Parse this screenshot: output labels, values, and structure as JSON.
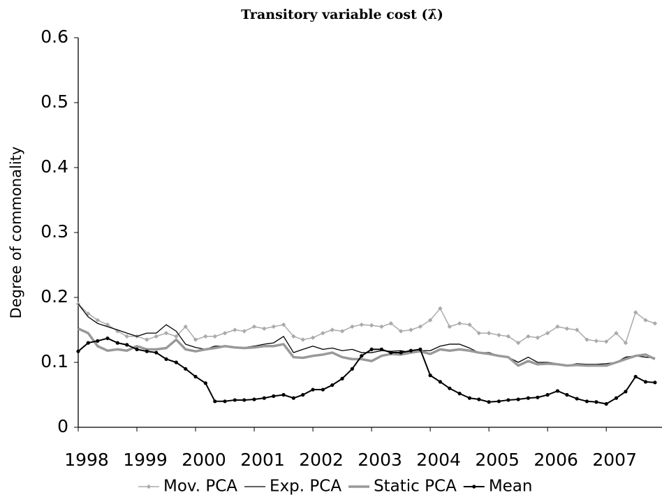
{
  "chart_data": {
    "type": "line",
    "title": "Transitory variable cost (λ̄)",
    "y_label": "Degree of commonality",
    "x": [
      1998,
      1998.17,
      1998.33,
      1998.5,
      1998.67,
      1998.83,
      1999,
      1999.17,
      1999.33,
      1999.5,
      1999.67,
      1999.83,
      2000,
      2000.17,
      2000.33,
      2000.5,
      2000.67,
      2000.83,
      2001,
      2001.17,
      2001.33,
      2001.5,
      2001.67,
      2001.83,
      2002,
      2002.17,
      2002.33,
      2002.5,
      2002.67,
      2002.83,
      2003,
      2003.17,
      2003.33,
      2003.5,
      2003.67,
      2003.83,
      2004,
      2004.17,
      2004.33,
      2004.5,
      2004.67,
      2004.83,
      2005,
      2005.17,
      2005.33,
      2005.5,
      2005.67,
      2005.83,
      2006,
      2006.17,
      2006.33,
      2006.5,
      2006.67,
      2006.83,
      2007,
      2007.17,
      2007.33,
      2007.5,
      2007.67,
      2007.83
    ],
    "series": [
      {
        "name": "Mov. PCA",
        "color": "#aaaaaa",
        "marker": "diamond",
        "width": 1.5,
        "values": [
          0.19,
          0.175,
          0.165,
          0.158,
          0.148,
          0.14,
          0.14,
          0.135,
          0.14,
          0.145,
          0.14,
          0.155,
          0.135,
          0.14,
          0.14,
          0.145,
          0.15,
          0.148,
          0.155,
          0.152,
          0.155,
          0.158,
          0.14,
          0.135,
          0.138,
          0.145,
          0.15,
          0.148,
          0.155,
          0.158,
          0.157,
          0.155,
          0.16,
          0.148,
          0.15,
          0.155,
          0.165,
          0.183,
          0.155,
          0.16,
          0.158,
          0.145,
          0.145,
          0.142,
          0.14,
          0.13,
          0.14,
          0.138,
          0.145,
          0.155,
          0.152,
          0.15,
          0.135,
          0.133,
          0.132,
          0.145,
          0.13,
          0.177,
          0.165,
          0.16
        ]
      },
      {
        "name": "Exp. PCA",
        "color": "#000000",
        "marker": "none",
        "width": 1.3,
        "values": [
          0.19,
          0.17,
          0.16,
          0.155,
          0.15,
          0.145,
          0.14,
          0.145,
          0.145,
          0.158,
          0.148,
          0.128,
          0.123,
          0.12,
          0.125,
          0.125,
          0.122,
          0.123,
          0.125,
          0.128,
          0.13,
          0.14,
          0.115,
          0.12,
          0.125,
          0.12,
          0.122,
          0.118,
          0.12,
          0.115,
          0.115,
          0.118,
          0.117,
          0.118,
          0.115,
          0.118,
          0.118,
          0.125,
          0.128,
          0.128,
          0.122,
          0.115,
          0.115,
          0.11,
          0.108,
          0.1,
          0.108,
          0.1,
          0.1,
          0.098,
          0.095,
          0.098,
          0.097,
          0.097,
          0.098,
          0.1,
          0.108,
          0.11,
          0.108,
          0.107
        ]
      },
      {
        "name": "Static PCA",
        "color": "#999999",
        "marker": "none",
        "width": 3.5,
        "values": [
          0.152,
          0.145,
          0.125,
          0.118,
          0.12,
          0.118,
          0.125,
          0.12,
          0.12,
          0.122,
          0.135,
          0.12,
          0.117,
          0.12,
          0.122,
          0.125,
          0.123,
          0.122,
          0.123,
          0.125,
          0.125,
          0.128,
          0.108,
          0.107,
          0.11,
          0.112,
          0.115,
          0.108,
          0.105,
          0.105,
          0.102,
          0.11,
          0.113,
          0.112,
          0.115,
          0.117,
          0.113,
          0.12,
          0.118,
          0.12,
          0.118,
          0.115,
          0.113,
          0.11,
          0.108,
          0.095,
          0.102,
          0.097,
          0.098,
          0.097,
          0.095,
          0.096,
          0.095,
          0.095,
          0.095,
          0.1,
          0.105,
          0.11,
          0.112,
          0.105
        ]
      },
      {
        "name": "Mean",
        "color": "#000000",
        "marker": "circle",
        "width": 2,
        "values": [
          0.117,
          0.13,
          0.133,
          0.137,
          0.13,
          0.127,
          0.12,
          0.117,
          0.115,
          0.105,
          0.1,
          0.09,
          0.078,
          0.068,
          0.04,
          0.04,
          0.042,
          0.042,
          0.043,
          0.045,
          0.048,
          0.05,
          0.045,
          0.05,
          0.058,
          0.058,
          0.065,
          0.075,
          0.09,
          0.11,
          0.12,
          0.12,
          0.115,
          0.115,
          0.118,
          0.12,
          0.08,
          0.07,
          0.06,
          0.052,
          0.045,
          0.043,
          0.039,
          0.04,
          0.042,
          0.043,
          0.045,
          0.046,
          0.05,
          0.056,
          0.05,
          0.044,
          0.04,
          0.039,
          0.036,
          0.045,
          0.055,
          0.078,
          0.07,
          0.069
        ]
      }
    ],
    "xlim": [
      1998,
      2007.95
    ],
    "xticks": [
      1998,
      1999,
      2000,
      2001,
      2002,
      2003,
      2004,
      2005,
      2006,
      2007
    ],
    "ylim": [
      0,
      0.6
    ],
    "yticks": [
      0,
      0.1,
      0.2,
      0.3,
      0.4,
      0.5,
      0.6
    ],
    "grid": false,
    "legend": "bottom"
  }
}
